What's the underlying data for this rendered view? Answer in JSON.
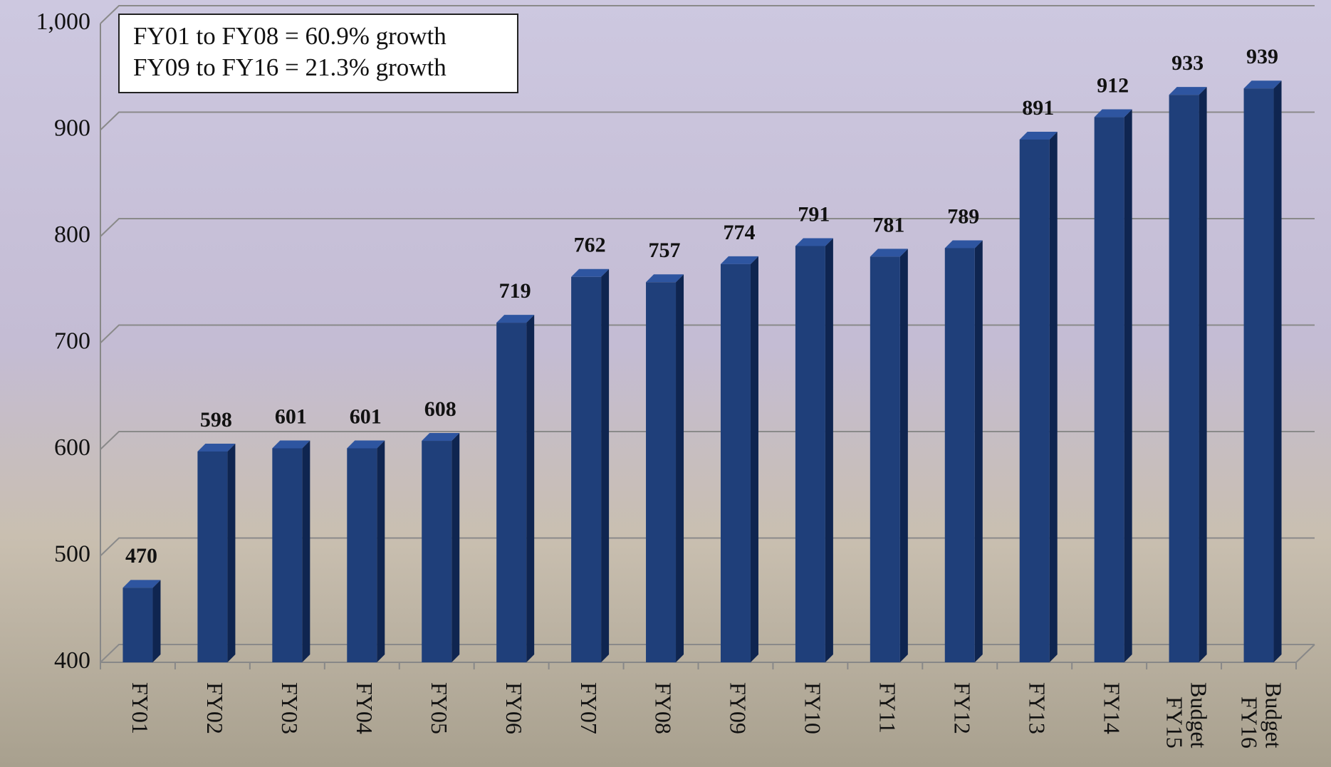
{
  "chart_data": {
    "type": "bar",
    "annotations": [
      "FY01 to FY08 = 60.9% growth",
      "FY09 to FY16 = 21.3% growth"
    ],
    "categories": [
      "FY01",
      "FY02",
      "FY03",
      "FY04",
      "FY05",
      "FY06",
      "FY07",
      "FY08",
      "FY09",
      "FY10",
      "FY11",
      "FY12",
      "FY13",
      "FY14",
      "FY15 Budget",
      "FY16 Budget"
    ],
    "values": [
      470,
      598,
      601,
      601,
      608,
      719,
      762,
      757,
      774,
      791,
      781,
      789,
      891,
      912,
      933,
      939
    ],
    "color": "#1f3f7a",
    "ylim": [
      400,
      1000
    ],
    "yticks": [
      400,
      500,
      600,
      700,
      800,
      900,
      {
        "value": 1000,
        "label": "1,000"
      }
    ],
    "grid": true
  }
}
